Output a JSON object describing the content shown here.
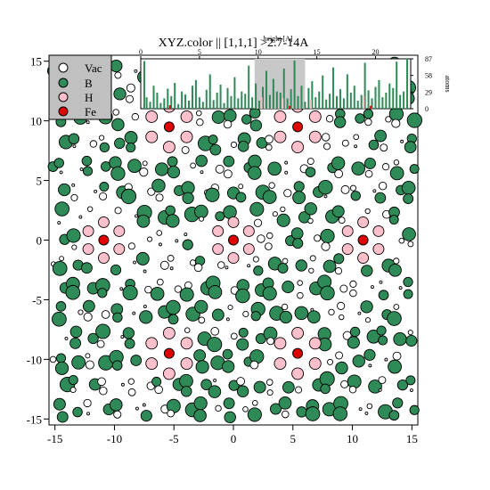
{
  "chart_data": {
    "type": "scatter",
    "title": "XYZ.color || [1,1,1] >2.7-14A",
    "xlim": [
      -15.5,
      15.5
    ],
    "ylim": [
      -15.5,
      15.5
    ],
    "x_ticks": [
      -15,
      -10,
      -5,
      0,
      5,
      10,
      15
    ],
    "y_ticks": [
      15,
      10,
      5,
      0,
      -5,
      -10,
      -15
    ],
    "x_tick_labels": [
      "-15",
      "-10",
      "-5",
      "0",
      "5",
      "10",
      "15"
    ],
    "y_tick_labels": [
      "15",
      "10",
      "5",
      "0",
      "-5",
      "-10",
      "-15"
    ],
    "legend": {
      "position": "top-left",
      "entries": [
        {
          "label": "Vac",
          "color": "#ffffff"
        },
        {
          "label": "B",
          "color": "#2e8b57"
        },
        {
          "label": "H",
          "color": "#ffc0cb"
        },
        {
          "label": "Fe",
          "color": "#e00000"
        }
      ]
    },
    "colors": {
      "Vac": "#ffffff",
      "B": "#2e8b57",
      "H": "#ffc0cb",
      "Fe": "#e00000"
    },
    "fe_centers": [
      [
        -5.4,
        9.5
      ],
      [
        5.4,
        9.5
      ],
      [
        -10.9,
        0
      ],
      [
        0,
        0
      ],
      [
        10.9,
        0
      ],
      [
        -5.4,
        -9.5
      ],
      [
        5.4,
        -9.5
      ]
    ],
    "h_rings": [
      {
        "center": [
          -5.4,
          9.5
        ],
        "big": true
      },
      {
        "center": [
          5.4,
          9.5
        ],
        "big": true
      },
      {
        "center": [
          -10.9,
          0
        ],
        "big": false
      },
      {
        "center": [
          0,
          0
        ],
        "big": false
      },
      {
        "center": [
          10.9,
          0
        ],
        "big": false
      },
      {
        "center": [
          -5.4,
          -9.5
        ],
        "big": true
      },
      {
        "center": [
          5.4,
          -9.5
        ],
        "big": true
      }
    ],
    "inset": {
      "type": "bar",
      "xlabel": "height [A]",
      "ylabel": "atoms",
      "xlim": [
        0,
        23
      ],
      "x_ticks": [
        0,
        5,
        10,
        15,
        20
      ],
      "x_tick_labels": [
        "0",
        "5",
        "10",
        "15",
        "20"
      ],
      "y_ticks": [
        0,
        29,
        58,
        87
      ],
      "y_tick_labels": [
        "0",
        "29",
        "58",
        "87"
      ],
      "ylim": [
        0,
        87
      ],
      "highlight_range": [
        9.7,
        14.0
      ],
      "bar_x": [
        0.3,
        0.5,
        0.8,
        1.1,
        1.4,
        1.7,
        2.0,
        2.3,
        2.6,
        2.9,
        3.2,
        3.5,
        3.8,
        4.1,
        4.4,
        4.7,
        5.0,
        5.3,
        5.6,
        5.9,
        6.2,
        6.5,
        6.8,
        7.1,
        7.4,
        7.7,
        8.0,
        8.3,
        8.6,
        8.9,
        9.2,
        9.5,
        9.8,
        10.1,
        10.4,
        10.7,
        11.0,
        11.3,
        11.6,
        11.9,
        12.2,
        12.5,
        12.8,
        13.1,
        13.4,
        13.7,
        14.0,
        14.3,
        14.6,
        14.9,
        15.2,
        15.5,
        15.8,
        16.1,
        16.4,
        16.7,
        17.0,
        17.3,
        17.6,
        17.9,
        18.2,
        18.5,
        18.8,
        19.1,
        19.4,
        19.7,
        20.0,
        20.3,
        20.6,
        20.9,
        21.2,
        21.5,
        21.8,
        22.1,
        22.4,
        22.7
      ],
      "bar_values": [
        83,
        20,
        12,
        40,
        28,
        10,
        18,
        35,
        22,
        45,
        8,
        30,
        25,
        14,
        40,
        50,
        20,
        12,
        33,
        60,
        15,
        28,
        42,
        10,
        36,
        22,
        55,
        18,
        30,
        26,
        75,
        20,
        44,
        14,
        38,
        66,
        24,
        52,
        30,
        28,
        70,
        18,
        34,
        84,
        22,
        40,
        12,
        36,
        48,
        20,
        30,
        58,
        16,
        26,
        72,
        22,
        34,
        18,
        60,
        28,
        40,
        14,
        24,
        80,
        32,
        18,
        38,
        50,
        20,
        28,
        44,
        36,
        82,
        24,
        30,
        87
      ],
      "pink_bars": [
        [
          10.1,
          20
        ],
        [
          11.9,
          18
        ],
        [
          14.3,
          16
        ],
        [
          18.8,
          22
        ]
      ],
      "red_bars": [
        [
          2.3,
          6
        ],
        [
          12.5,
          5
        ],
        [
          19.4,
          5
        ]
      ]
    }
  }
}
